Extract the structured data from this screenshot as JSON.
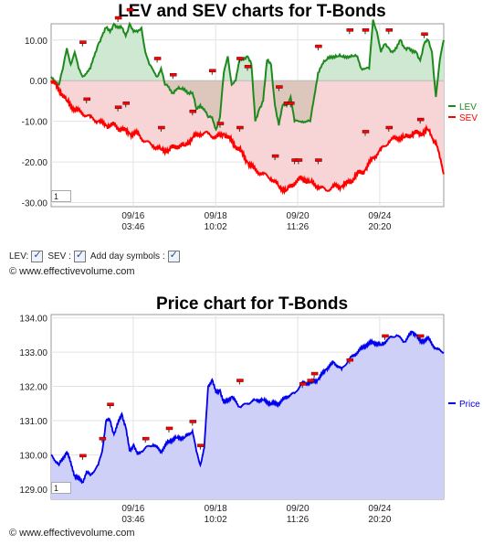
{
  "charts": [
    {
      "title": "LEV and SEV charts for T-Bonds",
      "page_box": "1",
      "yticks": [
        "10.00",
        "0.00",
        "-10.00",
        "-20.00",
        "-30.00"
      ],
      "xticks": [
        [
          "09/16",
          "03:46"
        ],
        [
          "09/18",
          "10:02"
        ],
        [
          "09/20",
          "11:26"
        ],
        [
          "09/24",
          "20:20"
        ]
      ]
    },
    {
      "title": "Price chart for T-Bonds",
      "page_box": "1",
      "yticks": [
        "134.00",
        "133.00",
        "132.00",
        "131.00",
        "130.00",
        "129.00"
      ],
      "xticks": [
        [
          "09/16",
          "03:46"
        ],
        [
          "09/18",
          "10:02"
        ],
        [
          "09/20",
          "11:26"
        ],
        [
          "09/24",
          "20:20"
        ]
      ]
    }
  ],
  "controls": {
    "lev_label": "LEV:",
    "sev_label": "SEV :",
    "day_label": "Add day symbols :",
    "lev_checked": true,
    "sev_checked": true,
    "day_checked": true
  },
  "copyright": "© www.effectivevolume.com",
  "colors": {
    "lev": "#1e8a1e",
    "lev_fill": "#cfe8d2",
    "sev": "#ff0000",
    "sev_fill": "#f7d4d6",
    "overlap_fill": "#d8c4b8",
    "price": "#0000ee",
    "price_fill": "#cfd0f7",
    "marker": "#ff0000"
  },
  "chart_data": [
    {
      "type": "line",
      "title": "LEV and SEV charts for T-Bonds",
      "ylim": [
        -31,
        14
      ],
      "xlim": [
        0,
        100
      ],
      "grid": true,
      "legend_position": "right",
      "series": [
        {
          "name": "LEV",
          "x": [
            0,
            2,
            3,
            4,
            5,
            6,
            7,
            8,
            10,
            11,
            12,
            13,
            14,
            15,
            16,
            17,
            18,
            19,
            20,
            21,
            22,
            23,
            24,
            25,
            27,
            28,
            29,
            29.5,
            31,
            32,
            33,
            34,
            35,
            36,
            37,
            38,
            39,
            40,
            41,
            42,
            43,
            44,
            45,
            46,
            47,
            48,
            50,
            51,
            52,
            53,
            54,
            55,
            56,
            57,
            58,
            59,
            60,
            61,
            62,
            63,
            64,
            65,
            66,
            67,
            68,
            69,
            70,
            71,
            72,
            73,
            74,
            75,
            76,
            77,
            78,
            79,
            80,
            81,
            82,
            83,
            84,
            85,
            86,
            87,
            88,
            89,
            90,
            91,
            92,
            93,
            94,
            95,
            96,
            97,
            98,
            99,
            100
          ],
          "y": [
            1,
            -1,
            3,
            8,
            4,
            7,
            3,
            1,
            3,
            6,
            9,
            11,
            13,
            12,
            14,
            13,
            13,
            11,
            14,
            12,
            12,
            13,
            7,
            4,
            1,
            3,
            -1,
            -1,
            -3,
            -2,
            -2,
            -2,
            -3,
            -3,
            -7,
            -6,
            -7,
            -9,
            -9,
            -12,
            -9,
            2,
            6,
            -1,
            0,
            5,
            6,
            4,
            -10,
            -7,
            -5,
            5,
            4,
            -6,
            -11,
            -6,
            -6,
            -4,
            -10,
            -10,
            -10,
            -10,
            -10,
            -4,
            2,
            4,
            5,
            6,
            6,
            6,
            6,
            6,
            6,
            6,
            6,
            3,
            3,
            3,
            15,
            12,
            7,
            9,
            8,
            7,
            8,
            10,
            8,
            8,
            7,
            7,
            5,
            9,
            10,
            7,
            -4,
            5,
            10
          ]
        },
        {
          "name": "SEV",
          "x": [
            0,
            2,
            4,
            6,
            8,
            10,
            12,
            14,
            16,
            18,
            20,
            22,
            24,
            26,
            28,
            30,
            32,
            34,
            36,
            38,
            40,
            42,
            44,
            46,
            48,
            50,
            52,
            54,
            56,
            58,
            60,
            62,
            64,
            66,
            68,
            70,
            72,
            74,
            76,
            78,
            80,
            82,
            84,
            86,
            88,
            90,
            92,
            94,
            96,
            97,
            98,
            99,
            100
          ],
          "y": [
            0,
            -2,
            -5,
            -7,
            -8,
            -9,
            -10,
            -11,
            -11,
            -12,
            -13,
            -13,
            -15,
            -16,
            -17,
            -17,
            -16,
            -16,
            -14,
            -13,
            -13,
            -14,
            -13,
            -15,
            -17,
            -20,
            -22,
            -23,
            -24,
            -26,
            -27,
            -25,
            -24,
            -25,
            -26,
            -27,
            -26,
            -26,
            -25,
            -23,
            -22,
            -19,
            -17,
            -15,
            -14,
            -14,
            -13,
            -13,
            -12,
            -14,
            -15,
            -19,
            -23
          ]
        }
      ],
      "day_markers_lev": [
        [
          8,
          8
        ],
        [
          17,
          14
        ],
        [
          20,
          16
        ],
        [
          27,
          4
        ],
        [
          31,
          0
        ],
        [
          41,
          1
        ],
        [
          48,
          4
        ],
        [
          50,
          2
        ],
        [
          58,
          -3
        ],
        [
          60,
          -7
        ],
        [
          61,
          -7
        ],
        [
          68,
          7
        ],
        [
          76,
          11
        ],
        [
          80,
          11
        ],
        [
          86,
          11
        ],
        [
          95,
          10
        ]
      ],
      "day_markers_sev": [
        [
          9,
          -6
        ],
        [
          17,
          -8
        ],
        [
          19,
          -7
        ],
        [
          28,
          -13
        ],
        [
          36,
          -9
        ],
        [
          43,
          -12
        ],
        [
          48,
          -13
        ],
        [
          57,
          -20
        ],
        [
          62,
          -21
        ],
        [
          63,
          -21
        ],
        [
          68,
          -21
        ],
        [
          80,
          -14
        ],
        [
          86,
          -13
        ],
        [
          94,
          -11
        ]
      ]
    },
    {
      "type": "area",
      "title": "Price chart for T-Bonds",
      "ylim": [
        128.7,
        134.1
      ],
      "xlim": [
        0,
        100
      ],
      "grid": true,
      "legend_position": "right",
      "series": [
        {
          "name": "Price",
          "x": [
            0,
            2,
            4,
            6,
            8,
            9,
            10,
            12,
            13,
            14,
            15,
            16,
            17,
            18,
            19,
            20,
            21,
            22,
            23,
            24,
            26,
            28,
            30,
            32,
            34,
            36,
            37,
            38,
            39,
            40,
            41,
            42,
            43,
            44,
            46,
            48,
            50,
            52,
            54,
            56,
            58,
            60,
            62,
            64,
            66,
            68,
            70,
            72,
            74,
            76,
            78,
            80,
            82,
            84,
            86,
            88,
            90,
            92,
            93,
            94,
            96,
            98,
            100
          ],
          "y": [
            130.0,
            129.7,
            130.1,
            129.4,
            129.2,
            129.5,
            129.4,
            129.7,
            130.1,
            131.0,
            131.0,
            130.6,
            130.9,
            131.2,
            130.8,
            130.1,
            130.3,
            130.0,
            130.1,
            130.2,
            130.3,
            130.1,
            130.4,
            130.5,
            130.5,
            130.7,
            130.1,
            129.7,
            130.2,
            132.0,
            132.2,
            131.8,
            131.9,
            131.5,
            131.7,
            131.4,
            131.5,
            131.6,
            131.6,
            131.5,
            131.5,
            131.7,
            131.8,
            132.1,
            132.1,
            132.2,
            132.5,
            132.7,
            132.5,
            132.8,
            133.0,
            133.2,
            133.3,
            133.2,
            133.4,
            133.5,
            133.3,
            133.6,
            133.5,
            133.3,
            133.4,
            133.1,
            133.0
          ]
        }
      ],
      "day_markers": [
        [
          8,
          129.8
        ],
        [
          13,
          130.3
        ],
        [
          15,
          131.3
        ],
        [
          24,
          130.3
        ],
        [
          30,
          130.6
        ],
        [
          36,
          130.8
        ],
        [
          38,
          130.1
        ],
        [
          48,
          132.0
        ],
        [
          64,
          131.9
        ],
        [
          66,
          132.0
        ],
        [
          67,
          132.2
        ],
        [
          76,
          132.6
        ],
        [
          85,
          133.3
        ],
        [
          94,
          133.3
        ]
      ]
    }
  ]
}
